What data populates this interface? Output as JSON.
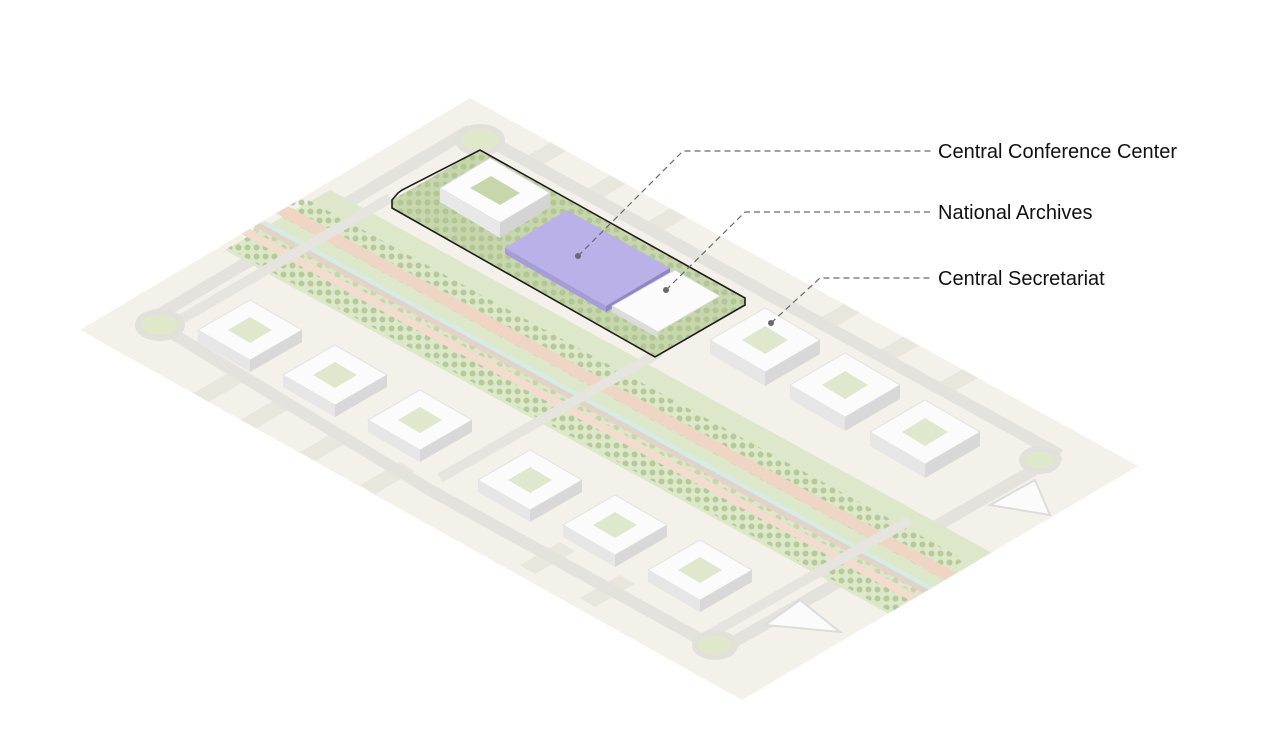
{
  "callouts": [
    {
      "id": "conference",
      "label": "Central Conference Center"
    },
    {
      "id": "archives",
      "label": "National Archives"
    },
    {
      "id": "secretariat",
      "label": "Central Secretariat"
    }
  ],
  "colors": {
    "ground": "#f3f1ea",
    "greenery": "#d9e4c4",
    "tree_dots": "#a7bf86",
    "road": "#e6e4df",
    "promenade": "#f0d8c8",
    "water": "#d7ece6",
    "building_top": "#fbfbfb",
    "building_side": "#dedede",
    "highlight": "#b7b0e6",
    "outline": "#1d1d1d",
    "leader": "#666666"
  }
}
